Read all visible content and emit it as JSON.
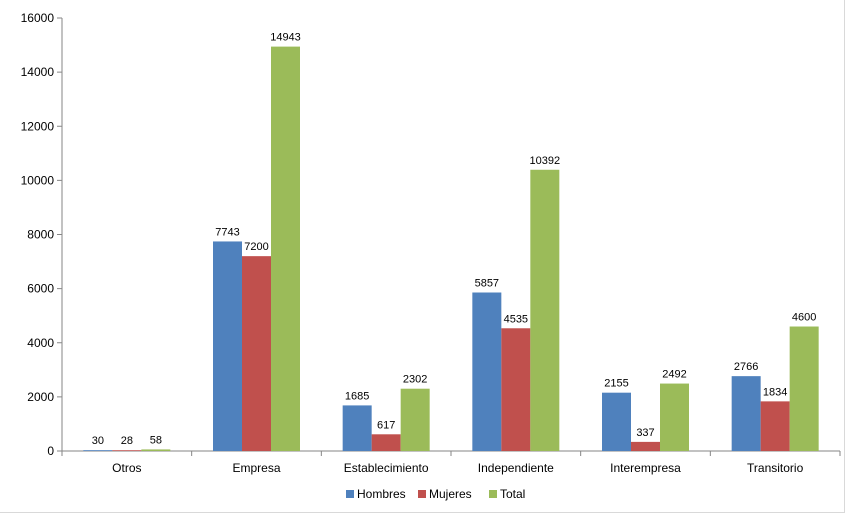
{
  "chart_data": {
    "type": "bar",
    "categories": [
      "Otros",
      "Empresa",
      "Establecimiento",
      "Independiente",
      "Interempresa",
      "Transitorio"
    ],
    "series": [
      {
        "name": "Hombres",
        "color": "#4f81bd",
        "values": [
          30,
          7743,
          1685,
          5857,
          2155,
          2766
        ]
      },
      {
        "name": "Mujeres",
        "color": "#c0504d",
        "values": [
          28,
          7200,
          617,
          4535,
          337,
          1834
        ]
      },
      {
        "name": "Total",
        "color": "#9bbb59",
        "values": [
          58,
          14943,
          2302,
          10392,
          2492,
          4600
        ]
      }
    ],
    "ylim": [
      0,
      16000
    ],
    "yticks": [
      0,
      2000,
      4000,
      6000,
      8000,
      10000,
      12000,
      14000,
      16000
    ],
    "legend_position": "bottom",
    "grid": false
  }
}
